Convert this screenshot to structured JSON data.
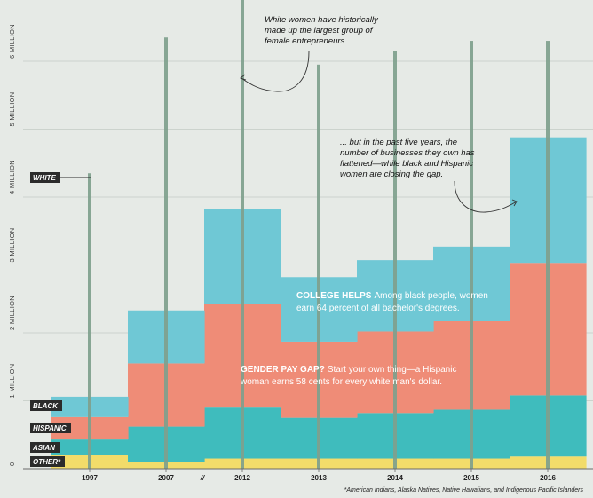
{
  "chart_data": {
    "type": "stacked area",
    "categories": [
      "1997",
      "2007",
      "2012",
      "2013",
      "2014",
      "2015",
      "2016"
    ],
    "series": [
      {
        "name": "OTHER*",
        "values": [
          0.2,
          0.1,
          0.15,
          0.15,
          0.15,
          0.15,
          0.18
        ]
      },
      {
        "name": "ASIAN",
        "values": [
          0.23,
          0.52,
          0.75,
          0.6,
          0.67,
          0.72,
          0.9
        ]
      },
      {
        "name": "HISPANIC",
        "values": [
          0.33,
          0.93,
          1.52,
          1.12,
          1.2,
          1.3,
          1.95
        ]
      },
      {
        "name": "BLACK",
        "values": [
          0.3,
          0.78,
          1.41,
          0.95,
          1.05,
          1.1,
          1.85
        ]
      }
    ],
    "white_totals": [
      4.35,
      6.35,
      7.15,
      5.95,
      6.15,
      6.3,
      6.3
    ],
    "y_ticks": [
      {
        "label": "0",
        "value": 0
      },
      {
        "label": "1 MILLION",
        "value": 1
      },
      {
        "label": "2 MILLION",
        "value": 2
      },
      {
        "label": "3 MILLION",
        "value": 3
      },
      {
        "label": "4 MILLION",
        "value": 4
      },
      {
        "label": "5 MILLION",
        "value": 5
      },
      {
        "label": "6 MILLION",
        "value": 6
      }
    ],
    "ylim": [
      0,
      6.8
    ],
    "axis_break": "//",
    "grid": true,
    "colors": {
      "OTHER*": "#f2dc6a",
      "ASIAN": "#3fbcbd",
      "HISPANIC": "#ef8c77",
      "BLACK": "#6fc8d5",
      "WHITE": "#7fa08d",
      "background": "#e6eae6"
    },
    "series_labels": [
      {
        "label": "BLACK",
        "series": "BLACK"
      },
      {
        "label": "HISPANIC",
        "series": "HISPANIC"
      },
      {
        "label": "ASIAN",
        "series": "ASIAN"
      },
      {
        "label": "OTHER*",
        "series": "OTHER*"
      },
      {
        "label": "WHITE",
        "series": "WHITE"
      }
    ],
    "annotations": {
      "top_note": [
        "White women have historically",
        "made up the largest group of",
        "female entrepreneurs ..."
      ],
      "mid_note": [
        "... but in the past five years, the",
        "number of businesses they own has",
        "flattened—while black and Hispanic",
        "women are closing the gap."
      ],
      "college_title": "COLLEGE HELPS",
      "college_body": [
        "Among black people, women",
        "earn 64 percent of all bachelor's degrees."
      ],
      "paygap_title": "GENDER PAY GAP?",
      "paygap_body": [
        "Start your own thing—a Hispanic",
        "woman earns 58 cents for every white man's dollar."
      ]
    },
    "footnote": "*American Indians, Alaska Natives, Native Hawaiians, and Indigenous Pacific Islanders"
  }
}
